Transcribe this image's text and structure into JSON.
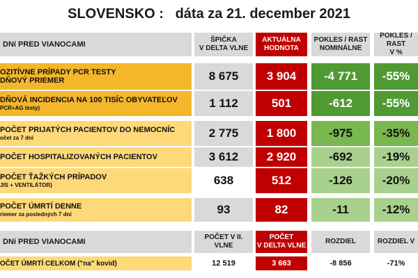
{
  "header": {
    "country": "SLOVENSKO :",
    "date_label": "dáta za 21. december 2021"
  },
  "table1": {
    "columns": {
      "label": "DNí PRED VIANOCAMI",
      "peak_delta": [
        "ŠPIČKA",
        "V DELTA VLNE"
      ],
      "current": [
        "AKTUÁLNA",
        "HODNOTA"
      ],
      "nominal": [
        "POKLES / RAST",
        "NOMINÁLNE"
      ],
      "pct": [
        "POKLES / RAST",
        "V %"
      ]
    },
    "rows": [
      {
        "line1": "OZITÍVNE PRÍPADY PCR TESTY",
        "line2": "DŇOVÝ PRIEMER",
        "peak": "8 675",
        "current": "3 904",
        "nominal": "-4 771",
        "pct": "-55%"
      },
      {
        "line1": "DŇOVÁ INCIDENCIA NA 100 TISÍC OBYVATEĽOV",
        "line2": "PCR+AG testy)",
        "peak": "1 112",
        "current": "501",
        "nominal": "-612",
        "pct": "-55%"
      },
      {
        "line1": "POČET PRIJATÝCH PACIENTOV DO NEMOCNÍC",
        "line2": "očet za 7 dní",
        "peak": "2 775",
        "current": "1 800",
        "nominal": "-975",
        "pct": "-35%"
      },
      {
        "line1": "POČET HOSPITALIZOVANÝCH PACIENTOV",
        "line2": "",
        "peak": "3 612",
        "current": "2 920",
        "nominal": "-692",
        "pct": "-19%"
      },
      {
        "line1": "POČET ŤAŽKÝCH PRÍPADOV",
        "line2": "JIS + VENTILÁTOR)",
        "peak": "638",
        "current": "512",
        "nominal": "-126",
        "pct": "-20%"
      },
      {
        "line1": "POČET ÚMRTÍ DENNE",
        "line2": "riemer za posledných 7 dní",
        "peak": "93",
        "current": "82",
        "nominal": "-11",
        "pct": "-12%"
      }
    ]
  },
  "table2": {
    "columns": {
      "label": "DNí PRED VIANOCAMI",
      "second_wave": [
        "POČET V II.",
        "VLNE"
      ],
      "delta_wave": [
        "POČET",
        "V DELTA VLNE"
      ],
      "diff": "ROZDIEL",
      "diff_pct": "ROZDIEL V"
    },
    "row": {
      "label": "OČET ÚMRTÍ CELKOM  (\"na\" kovid)",
      "second_wave": "12 519",
      "delta_wave": "3 663",
      "diff": "-8 856",
      "diff_pct": "-71%"
    }
  },
  "colors": {
    "red": "#c00000",
    "header_gray": "#d9d9d9",
    "dark_green": "#4f9a33",
    "medium_green": "#78b84e",
    "light_green": "#a9d18e",
    "orange": "#f4b62a",
    "yellow": "#fed97a"
  }
}
